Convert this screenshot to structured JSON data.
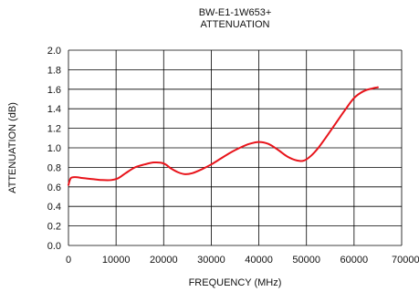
{
  "chart_data": {
    "type": "line",
    "title": "BW-E1-1W653+",
    "subtitle": "ATTENUATION",
    "xlabel": "FREQUENCY (MHz)",
    "ylabel": "ATTENUATION (dB)",
    "xlim": [
      0,
      70000
    ],
    "ylim": [
      0.0,
      2.0
    ],
    "x_ticks": [
      "0",
      "10000",
      "20000",
      "30000",
      "40000",
      "50000",
      "60000",
      "70000"
    ],
    "y_ticks": [
      "0.0",
      "0.2",
      "0.4",
      "0.6",
      "0.8",
      "1.0",
      "1.2",
      "1.4",
      "1.6",
      "1.8",
      "2.0"
    ],
    "grid": true,
    "series": [
      {
        "color": "#e8141b",
        "x": [
          0,
          500,
          1500,
          3000,
          5000,
          7000,
          9000,
          10500,
          12000,
          14000,
          16000,
          18000,
          20000,
          21500,
          23000,
          24500,
          26000,
          28000,
          30000,
          32000,
          34000,
          36000,
          38000,
          40000,
          42000,
          44000,
          46000,
          48000,
          49500,
          51000,
          52500,
          54000,
          56000,
          58000,
          60000,
          62000,
          64000,
          65000
        ],
        "y": [
          0.62,
          0.69,
          0.7,
          0.69,
          0.68,
          0.67,
          0.67,
          0.69,
          0.74,
          0.8,
          0.83,
          0.85,
          0.84,
          0.79,
          0.75,
          0.73,
          0.74,
          0.78,
          0.83,
          0.89,
          0.95,
          1.0,
          1.04,
          1.06,
          1.04,
          0.98,
          0.91,
          0.87,
          0.87,
          0.92,
          1.0,
          1.1,
          1.24,
          1.38,
          1.51,
          1.58,
          1.61,
          1.62
        ]
      }
    ]
  }
}
